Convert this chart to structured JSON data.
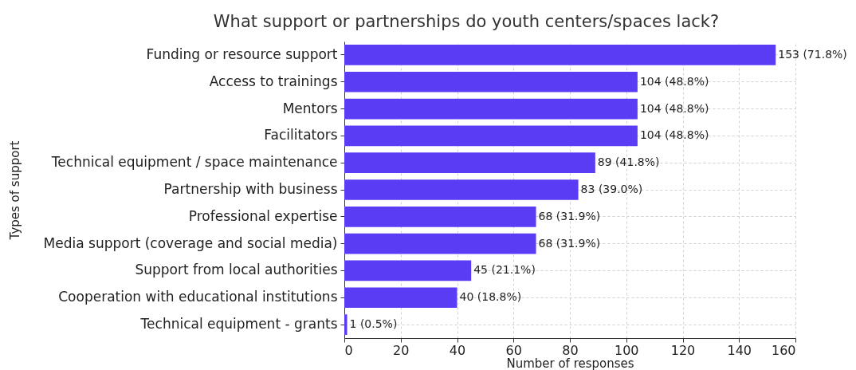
{
  "chart_data": {
    "type": "bar",
    "orientation": "horizontal",
    "title": "What support or partnerships do youth centers/spaces lack?",
    "xlabel": "Number of responses",
    "ylabel": "Types of support",
    "categories": [
      "Funding or resource support",
      "Access to trainings",
      "Mentors",
      "Facilitators",
      "Technical equipment / space maintenance",
      "Partnership with business",
      "Professional expertise",
      "Media support (coverage and social media)",
      "Support from local authorities",
      "Cooperation with educational institutions",
      "Technical equipment - grants"
    ],
    "values": [
      153,
      104,
      104,
      104,
      89,
      83,
      68,
      68,
      45,
      40,
      1
    ],
    "value_labels": [
      "153 (71.8%)",
      "104 (48.8%)",
      "104 (48.8%)",
      "104 (48.8%)",
      "89 (41.8%)",
      "83 (39.0%)",
      "68 (31.9%)",
      "68 (31.9%)",
      "45 (21.1%)",
      "40 (18.8%)",
      "1 (0.5%)"
    ],
    "color": "#5b3cf5",
    "xlim": [
      0,
      160
    ],
    "xticks": [
      0,
      20,
      40,
      60,
      80,
      100,
      120,
      140,
      160
    ],
    "grid": true
  }
}
